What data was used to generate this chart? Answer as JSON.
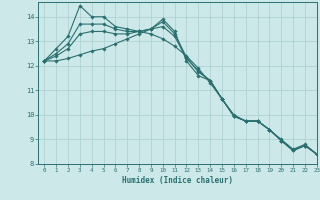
{
  "xlabel": "Humidex (Indice chaleur)",
  "ylabel": "",
  "bg_color": "#cce8e8",
  "grid_color": "#aacece",
  "line_color": "#2a7070",
  "xlim": [
    -0.5,
    23
  ],
  "ylim": [
    8,
    14.6
  ],
  "yticks": [
    8,
    9,
    10,
    11,
    12,
    13,
    14
  ],
  "xticks": [
    0,
    1,
    2,
    3,
    4,
    5,
    6,
    7,
    8,
    9,
    10,
    11,
    12,
    13,
    14,
    15,
    16,
    17,
    18,
    19,
    20,
    21,
    22,
    23
  ],
  "lines": [
    {
      "x": [
        0,
        1,
        2,
        3,
        4,
        5,
        6,
        7,
        8,
        9,
        10,
        11,
        12,
        13,
        14,
        15,
        16,
        17,
        18,
        19,
        20,
        21,
        22,
        23
      ],
      "y": [
        12.2,
        12.7,
        13.2,
        14.45,
        14.0,
        14.0,
        13.6,
        13.5,
        13.4,
        13.3,
        13.1,
        12.8,
        12.4,
        11.9,
        11.3,
        10.65,
        10.0,
        9.75,
        9.75,
        9.4,
        9.0,
        8.6,
        8.8,
        8.4
      ]
    },
    {
      "x": [
        0,
        1,
        2,
        3,
        4,
        5,
        6,
        7,
        8,
        9,
        10,
        11,
        12,
        13,
        14,
        15,
        16,
        17,
        18,
        19,
        20,
        21,
        22,
        23
      ],
      "y": [
        12.2,
        12.2,
        12.3,
        12.45,
        12.6,
        12.7,
        12.9,
        13.1,
        13.3,
        13.5,
        13.9,
        13.4,
        12.2,
        11.6,
        11.4,
        10.65,
        9.95,
        9.75,
        9.75,
        9.4,
        8.95,
        8.55,
        8.75,
        8.4
      ]
    },
    {
      "x": [
        0,
        1,
        2,
        3,
        4,
        5,
        6,
        7,
        8,
        9,
        10,
        11,
        12,
        13,
        14,
        15,
        16,
        17,
        18,
        19,
        20,
        21,
        22,
        23
      ],
      "y": [
        12.2,
        12.4,
        12.7,
        13.3,
        13.4,
        13.4,
        13.3,
        13.3,
        13.4,
        13.5,
        13.6,
        13.2,
        12.3,
        11.8,
        11.4,
        10.65,
        9.95,
        9.75,
        9.75,
        9.4,
        8.95,
        8.55,
        8.75,
        8.4
      ]
    },
    {
      "x": [
        0,
        1,
        2,
        3,
        4,
        5,
        6,
        7,
        8,
        9,
        10,
        11,
        12,
        13,
        14,
        15,
        16,
        17,
        18,
        19,
        20,
        21,
        22,
        23
      ],
      "y": [
        12.2,
        12.5,
        12.9,
        13.7,
        13.7,
        13.7,
        13.5,
        13.4,
        13.4,
        13.5,
        13.8,
        13.3,
        12.35,
        11.75,
        11.4,
        10.65,
        9.95,
        9.75,
        9.75,
        9.4,
        8.95,
        8.55,
        8.75,
        8.4
      ]
    }
  ]
}
